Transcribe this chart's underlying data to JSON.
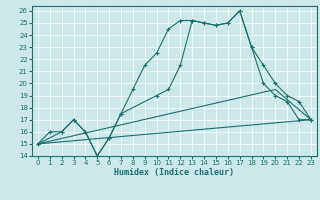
{
  "xlabel": "Humidex (Indice chaleur)",
  "xlim": [
    -0.5,
    23.5
  ],
  "ylim": [
    14,
    26.4
  ],
  "yticks": [
    14,
    15,
    16,
    17,
    18,
    19,
    20,
    21,
    22,
    23,
    24,
    25,
    26
  ],
  "xticks": [
    0,
    1,
    2,
    3,
    4,
    5,
    6,
    7,
    8,
    9,
    10,
    11,
    12,
    13,
    14,
    15,
    16,
    17,
    18,
    19,
    20,
    21,
    22,
    23
  ],
  "bg_color": "#cde8e8",
  "grid_color": "#b0d0d0",
  "line_color": "#1a7070",
  "line1_x": [
    0,
    1,
    2,
    3,
    4,
    5,
    6,
    7,
    8,
    9,
    10,
    11,
    12,
    13,
    14,
    15,
    16,
    17,
    18,
    19,
    20,
    21,
    22,
    23
  ],
  "line1_y": [
    15,
    16,
    16,
    17,
    16,
    14,
    15.5,
    17.5,
    19.5,
    21.5,
    22.5,
    24.5,
    25.2,
    25.2,
    25.0,
    24.8,
    25.0,
    26.0,
    23.0,
    20.0,
    19.0,
    18.5,
    17.0,
    17.0
  ],
  "line2_x": [
    0,
    2,
    3,
    4,
    5,
    6,
    7,
    10,
    11,
    12,
    13,
    14,
    15,
    16,
    17,
    18,
    19,
    20,
    21,
    22,
    23
  ],
  "line2_y": [
    15,
    16,
    17,
    16,
    14,
    15.5,
    17.5,
    19.0,
    19.5,
    21.5,
    25.2,
    25.0,
    24.8,
    25.0,
    26.0,
    23.0,
    21.5,
    20.0,
    19.0,
    18.5,
    17.0
  ],
  "line3_x": [
    0,
    23
  ],
  "line3_y": [
    15.0,
    17.0
  ],
  "line4_x": [
    0,
    20,
    23
  ],
  "line4_y": [
    15.0,
    19.5,
    17.0
  ]
}
